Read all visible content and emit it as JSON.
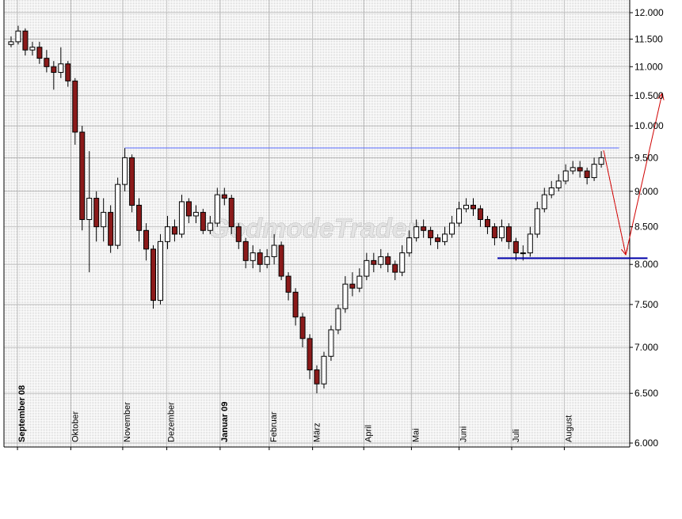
{
  "chart_data": {
    "type": "candlestick",
    "watermark": "GodmodeTrader",
    "log_y": true,
    "grid": true,
    "ylim": [
      6000,
      12000
    ],
    "yticks": [
      {
        "value": 6000,
        "label": "6.000"
      },
      {
        "value": 6500,
        "label": "6.500"
      },
      {
        "value": 7000,
        "label": "7.000"
      },
      {
        "value": 7500,
        "label": "7.500"
      },
      {
        "value": 8000,
        "label": "8.000"
      },
      {
        "value": 8500,
        "label": "8.500"
      },
      {
        "value": 9000,
        "label": "9.000"
      },
      {
        "value": 9500,
        "label": "9.500"
      },
      {
        "value": 10000,
        "label": "10.000"
      },
      {
        "value": 10500,
        "label": "10.500"
      },
      {
        "value": 11000,
        "label": "11.000"
      },
      {
        "value": 11500,
        "label": "11.500"
      },
      {
        "value": 12000,
        "label": "12.000"
      }
    ],
    "xlim": [
      -1,
      87
    ],
    "xticks": [
      {
        "value": 0.9,
        "label": "September 08"
      },
      {
        "value": 8.4,
        "label": "Oktober"
      },
      {
        "value": 15.7,
        "label": "November"
      },
      {
        "value": 21.9,
        "label": "Dezember"
      },
      {
        "value": 29.4,
        "label": "Januar 09"
      },
      {
        "value": 36.3,
        "label": "Februar"
      },
      {
        "value": 42.4,
        "label": "März"
      },
      {
        "value": 49.6,
        "label": "April"
      },
      {
        "value": 56.3,
        "label": "Mai"
      },
      {
        "value": 63,
        "label": "Juni"
      },
      {
        "value": 70.4,
        "label": "Juli"
      },
      {
        "value": 77.8,
        "label": "August"
      }
    ],
    "series": {
      "up_color": "#ffffff",
      "down_color": "#8b1a1a",
      "x": [
        0,
        1,
        2,
        3,
        4,
        5,
        6,
        7,
        8,
        9,
        10,
        11,
        12,
        13,
        14,
        15,
        16,
        17,
        18,
        19,
        20,
        21,
        22,
        23,
        24,
        25,
        26,
        27,
        28,
        29,
        30,
        31,
        32,
        33,
        34,
        35,
        36,
        37,
        38,
        39,
        40,
        41,
        42,
        43,
        44,
        45,
        46,
        47,
        48,
        49,
        50,
        51,
        52,
        53,
        54,
        55,
        56,
        57,
        58,
        59,
        60,
        61,
        62,
        63,
        64,
        65,
        66,
        67,
        68,
        69,
        70,
        71,
        72,
        73,
        74,
        75,
        76,
        77,
        78,
        79,
        80,
        81,
        82,
        83
      ],
      "open": [
        11400,
        11450,
        11650,
        11300,
        11350,
        11150,
        11000,
        10900,
        11050,
        10750,
        9900,
        8600,
        8900,
        8500,
        8700,
        8250,
        9100,
        9500,
        8800,
        8450,
        8200,
        7550,
        8300,
        8500,
        8400,
        8850,
        8650,
        8700,
        8450,
        8550,
        8950,
        8900,
        8500,
        8300,
        8050,
        8150,
        8000,
        8100,
        8250,
        7850,
        7650,
        7350,
        7100,
        6750,
        6600,
        6900,
        7200,
        7450,
        7750,
        7700,
        7850,
        8050,
        8000,
        8100,
        8000,
        7900,
        8150,
        8350,
        8500,
        8450,
        8350,
        8300,
        8400,
        8550,
        8750,
        8800,
        8750,
        8600,
        8500,
        8350,
        8500,
        8300,
        8150,
        8150,
        8400,
        8750,
        8950,
        9050,
        9150,
        9300,
        9350,
        9300,
        9200,
        9400
      ],
      "high": [
        11550,
        11750,
        11700,
        11450,
        11450,
        11300,
        11100,
        11350,
        11100,
        10800,
        10000,
        9600,
        9000,
        8900,
        8800,
        9200,
        9650,
        9550,
        8900,
        8550,
        8250,
        8400,
        8650,
        8600,
        8950,
        8900,
        8800,
        8750,
        8650,
        9050,
        9050,
        8950,
        8550,
        8350,
        8250,
        8200,
        8200,
        8400,
        8300,
        7900,
        7700,
        7400,
        7150,
        6800,
        6950,
        7250,
        7500,
        7850,
        7900,
        7950,
        8150,
        8150,
        8200,
        8150,
        8050,
        8250,
        8450,
        8600,
        8600,
        8500,
        8400,
        8500,
        8650,
        8850,
        8900,
        8900,
        8800,
        8650,
        8550,
        8600,
        8550,
        8350,
        8250,
        8500,
        8850,
        9050,
        9150,
        9250,
        9400,
        9450,
        9450,
        9350,
        9500,
        9600
      ],
      "low": [
        11350,
        11400,
        11200,
        11200,
        11050,
        10900,
        10600,
        10800,
        10650,
        9700,
        8450,
        7900,
        8300,
        8300,
        8150,
        8200,
        9000,
        8700,
        8300,
        8050,
        7450,
        7500,
        8200,
        8300,
        8350,
        8550,
        8550,
        8400,
        8400,
        8500,
        8800,
        8400,
        8200,
        7950,
        7950,
        7900,
        7950,
        8000,
        7800,
        7550,
        7250,
        7000,
        6650,
        6500,
        6550,
        6850,
        7150,
        7400,
        7600,
        7650,
        7800,
        7900,
        7950,
        7900,
        7800,
        7850,
        8100,
        8300,
        8350,
        8250,
        8200,
        8250,
        8350,
        8500,
        8700,
        8650,
        8500,
        8400,
        8250,
        8300,
        8200,
        8050,
        8050,
        8100,
        8350,
        8700,
        8900,
        9000,
        9100,
        9250,
        9200,
        9100,
        9150,
        9350
      ],
      "close": [
        11450,
        11650,
        11300,
        11350,
        11150,
        11000,
        10900,
        11050,
        10750,
        9900,
        8600,
        8900,
        8500,
        8700,
        8250,
        9100,
        9500,
        8800,
        8450,
        8200,
        7550,
        8300,
        8500,
        8400,
        8850,
        8650,
        8700,
        8450,
        8550,
        8950,
        8900,
        8500,
        8300,
        8050,
        8150,
        8000,
        8100,
        8250,
        7850,
        7650,
        7350,
        7100,
        6750,
        6600,
        6900,
        7200,
        7450,
        7750,
        7700,
        7850,
        8050,
        8000,
        8100,
        8000,
        7900,
        8150,
        8350,
        8500,
        8450,
        8350,
        8300,
        8400,
        8550,
        8750,
        8800,
        8750,
        8600,
        8500,
        8350,
        8500,
        8300,
        8150,
        8150,
        8400,
        8750,
        8950,
        9050,
        9150,
        9300,
        9350,
        9300,
        9200,
        9400,
        9500
      ]
    },
    "hlines": [
      {
        "value": 9650,
        "x": [
          16,
          85.5
        ],
        "color": "#5a6cff",
        "width": 1
      },
      {
        "value": 8080,
        "x": [
          68.4,
          89.5
        ],
        "color": "#0000a8",
        "width": 2
      }
    ]
  }
}
